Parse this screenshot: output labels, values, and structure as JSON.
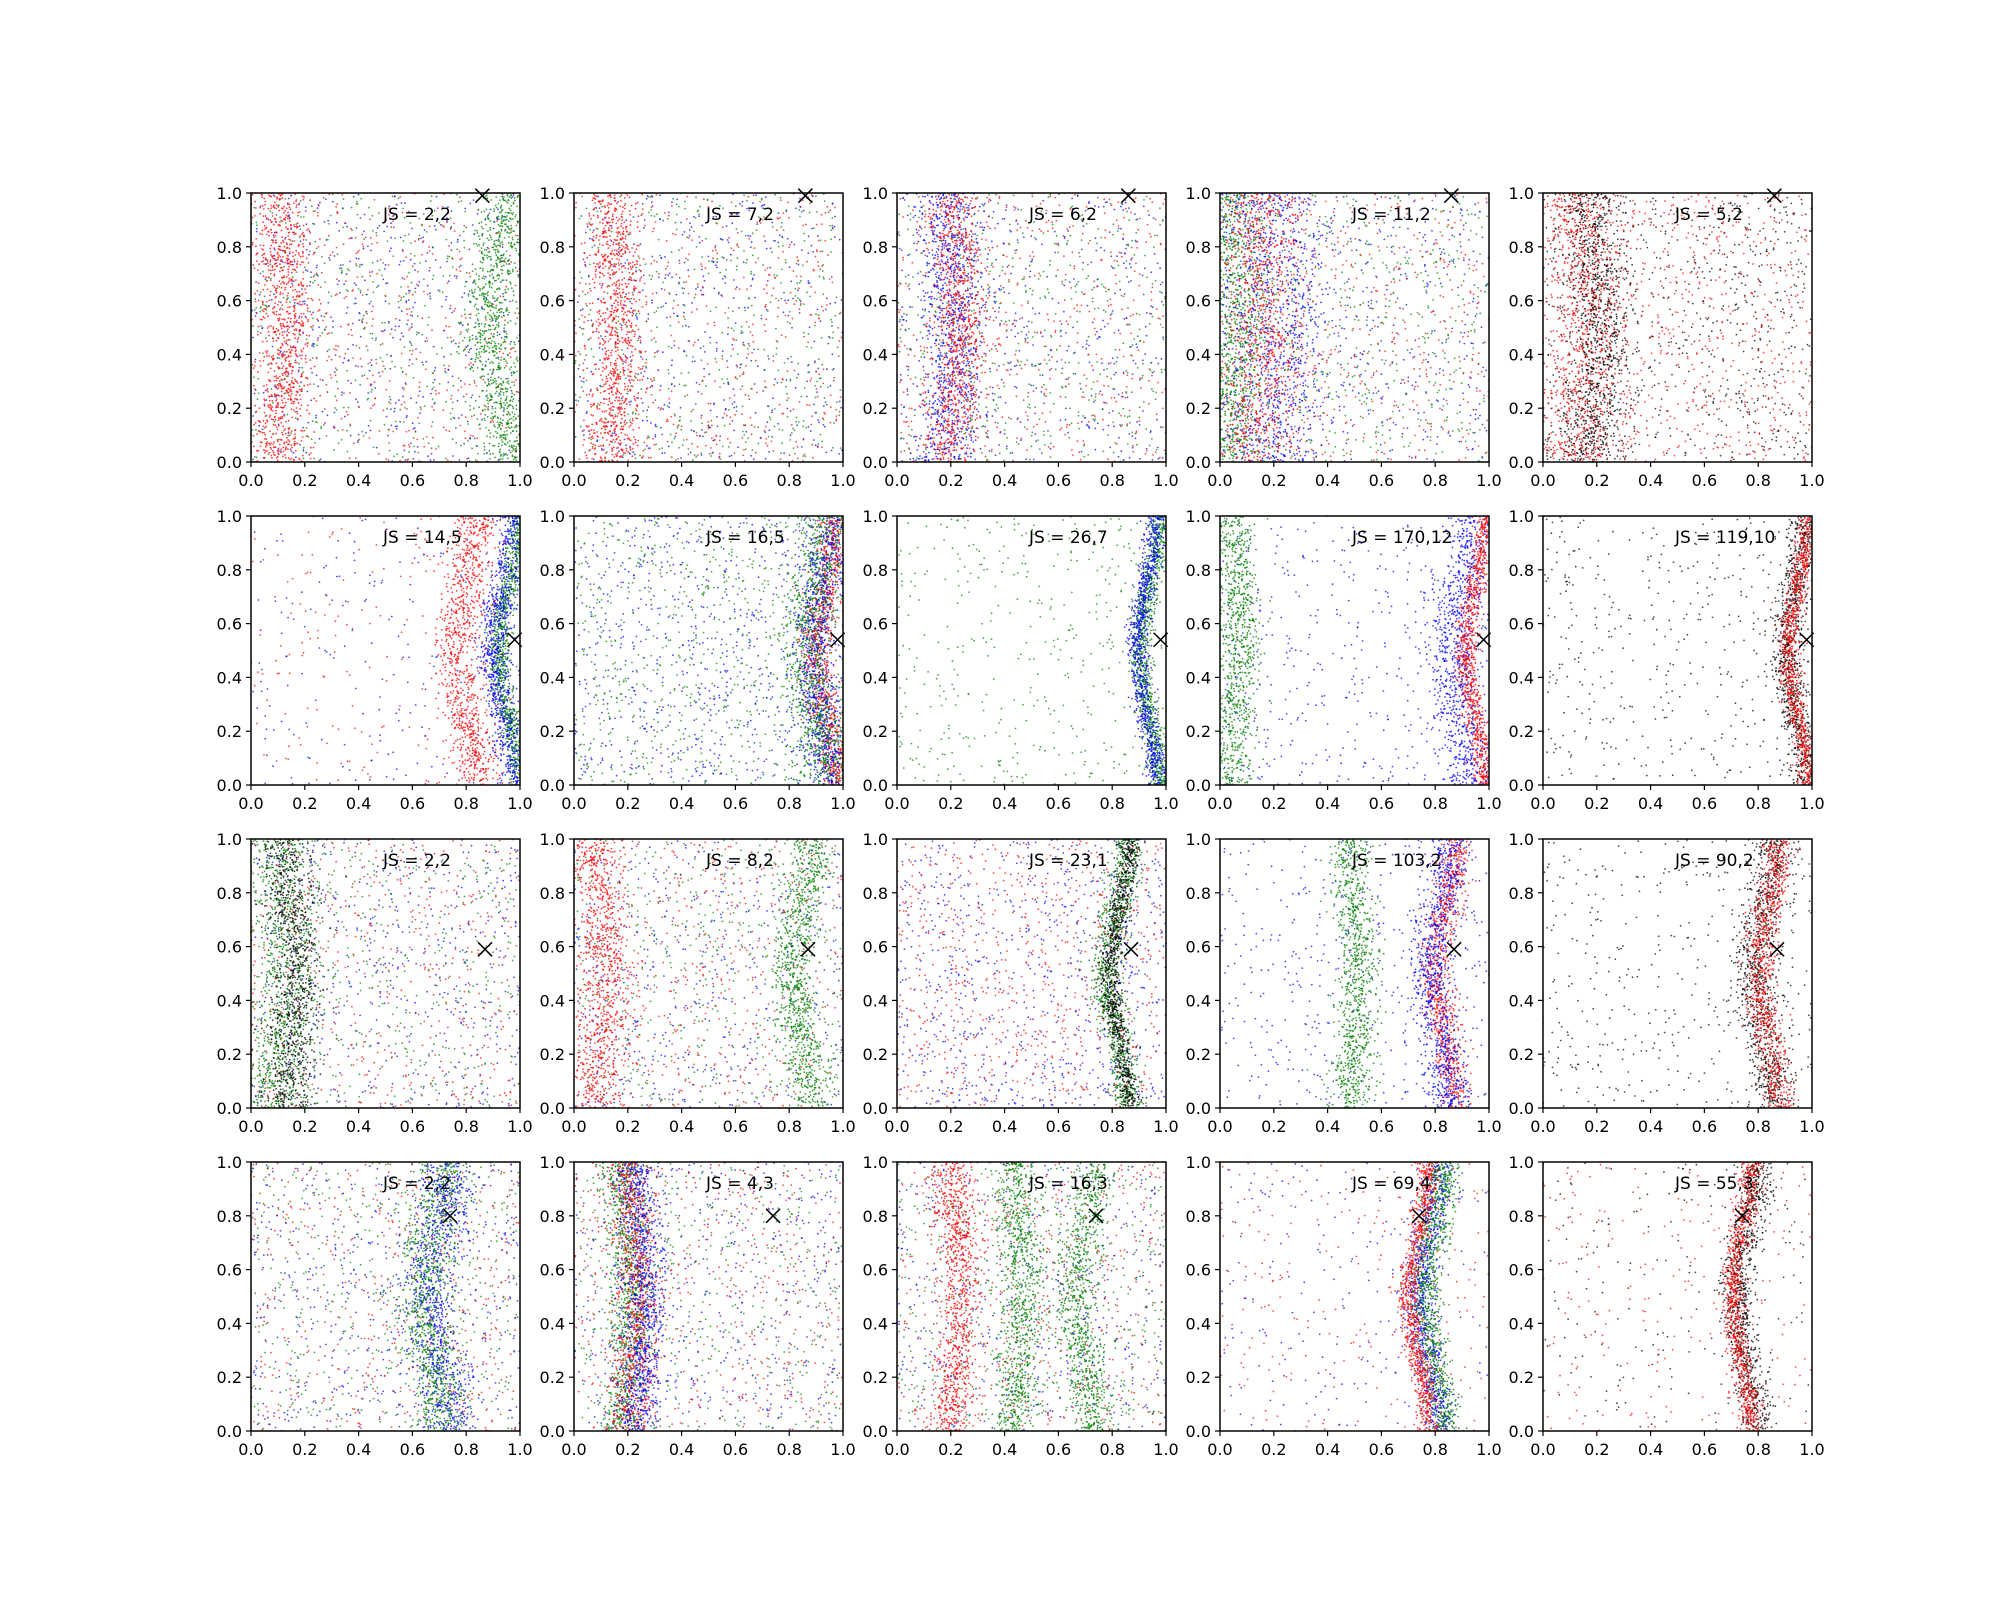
{
  "chart_data": {
    "type": "scatter",
    "layout": {
      "rows": 4,
      "cols": 5
    },
    "xlim": [
      0,
      1
    ],
    "ylim": [
      0,
      1
    ],
    "x_ticks": [
      "0.0",
      "0.2",
      "0.4",
      "0.6",
      "0.8",
      "1.0"
    ],
    "y_ticks": [
      "0.0",
      "0.2",
      "0.4",
      "0.6",
      "0.8",
      "1.0"
    ],
    "grid": false,
    "series_colors": [
      "#0000ff",
      "#008000",
      "#ff0000",
      "#000000"
    ],
    "marker_color": "#000000",
    "rows": [
      {
        "marker": [
          0.86,
          0.99
        ],
        "panels": [
          {
            "label": "JS = 2,2",
            "density": "diffuse",
            "colors": [
              "#0000ff",
              "#008000",
              "#ff0000"
            ],
            "bands": [
              [
                0.12,
                0.05,
                "#ff0000"
              ],
              [
                0.92,
                0.05,
                "#008000"
              ]
            ]
          },
          {
            "label": "JS = 7,2",
            "density": "diffuse",
            "colors": [
              "#0000ff",
              "#008000",
              "#ff0000"
            ],
            "bands": [
              [
                0.15,
                0.05,
                "#ff0000"
              ]
            ]
          },
          {
            "label": "JS = 6,2",
            "density": "diffuse",
            "colors": [
              "#0000ff",
              "#008000",
              "#ff0000"
            ],
            "bands": [
              [
                0.2,
                0.06,
                "#0000ff"
              ],
              [
                0.22,
                0.05,
                "#ff0000"
              ]
            ]
          },
          {
            "label": "JS = 11,2",
            "density": "diffuse",
            "colors": [
              "#0000ff",
              "#008000",
              "#ff0000"
            ],
            "bands": [
              [
                0.05,
                0.06,
                "#008000"
              ],
              [
                0.2,
                0.1,
                "#0000ff"
              ],
              [
                0.15,
                0.08,
                "#ff0000"
              ]
            ]
          },
          {
            "label": "JS = 5,2",
            "density": "diffuse",
            "colors": [
              "#ff0000",
              "#000000"
            ],
            "bands": [
              [
                0.15,
                0.08,
                "#ff0000"
              ],
              [
                0.2,
                0.06,
                "#000000"
              ]
            ]
          }
        ]
      },
      {
        "marker": [
          0.98,
          0.54
        ],
        "panels": [
          {
            "label": "JS = 14,5",
            "density": "sparse",
            "colors": [
              "#0000ff",
              "#ff0000"
            ],
            "bands": [
              [
                0.96,
                0.02,
                "#008000"
              ],
              [
                0.94,
                0.03,
                "#0000ff"
              ],
              [
                0.8,
                0.04,
                "#ff0000"
              ]
            ]
          },
          {
            "label": "JS = 16,5",
            "density": "diffuse",
            "colors": [
              "#008000",
              "#0000ff"
            ],
            "bands": [
              [
                0.94,
                0.03,
                "#ff0000"
              ],
              [
                0.92,
                0.04,
                "#0000ff"
              ],
              [
                0.9,
                0.05,
                "#008000"
              ]
            ]
          },
          {
            "label": "JS = 26,7",
            "density": "sparse",
            "colors": [
              "#008000"
            ],
            "bands": [
              [
                0.94,
                0.02,
                "#008000"
              ],
              [
                0.93,
                0.02,
                "#0000ff"
              ]
            ]
          },
          {
            "label": "JS = 170,12",
            "density": "sparse",
            "colors": [
              "#0000ff"
            ],
            "bands": [
              [
                0.06,
                0.04,
                "#008000"
              ],
              [
                0.9,
                0.05,
                "#0000ff"
              ],
              [
                0.95,
                0.02,
                "#ff0000"
              ]
            ]
          },
          {
            "label": "JS = 119,10",
            "density": "sparse",
            "colors": [
              "#000000"
            ],
            "bands": [
              [
                0.94,
                0.03,
                "#000000"
              ],
              [
                0.95,
                0.02,
                "#ff0000"
              ]
            ]
          }
        ]
      },
      {
        "marker": [
          0.87,
          0.59
        ],
        "panels": [
          {
            "label": "JS = 2,2",
            "density": "diffuse",
            "colors": [
              "#0000ff",
              "#008000",
              "#ff0000"
            ],
            "bands": [
              [
                0.12,
                0.06,
                "#008000"
              ],
              [
                0.15,
                0.05,
                "#000000"
              ]
            ]
          },
          {
            "label": "JS = 8,2",
            "density": "diffuse",
            "colors": [
              "#0000ff",
              "#008000",
              "#ff0000"
            ],
            "bands": [
              [
                0.85,
                0.04,
                "#008000"
              ],
              [
                0.1,
                0.05,
                "#ff0000"
              ]
            ]
          },
          {
            "label": "JS = 23,1",
            "density": "diffuse",
            "colors": [
              "#0000ff",
              "#ff0000"
            ],
            "bands": [
              [
                0.82,
                0.03,
                "#008000"
              ],
              [
                0.83,
                0.02,
                "#000000"
              ]
            ]
          },
          {
            "label": "JS = 103,2",
            "density": "sparse",
            "colors": [
              "#0000ff"
            ],
            "bands": [
              [
                0.5,
                0.04,
                "#008000"
              ],
              [
                0.84,
                0.03,
                "#ff0000"
              ],
              [
                0.82,
                0.04,
                "#0000ff"
              ]
            ]
          },
          {
            "label": "JS = 90,2",
            "density": "sparse",
            "colors": [
              "#000000"
            ],
            "bands": [
              [
                0.82,
                0.04,
                "#000000"
              ],
              [
                0.84,
                0.03,
                "#ff0000"
              ]
            ]
          }
        ]
      },
      {
        "marker": [
          0.74,
          0.8
        ],
        "panels": [
          {
            "label": "JS = 2,2",
            "density": "diffuse",
            "colors": [
              "#0000ff",
              "#008000",
              "#ff0000"
            ],
            "bands": [
              [
                0.7,
                0.05,
                "#0000ff"
              ],
              [
                0.68,
                0.05,
                "#008000"
              ]
            ]
          },
          {
            "label": "JS = 4,3",
            "density": "diffuse",
            "colors": [
              "#0000ff",
              "#008000",
              "#ff0000"
            ],
            "bands": [
              [
                0.2,
                0.04,
                "#008000"
              ],
              [
                0.22,
                0.04,
                "#ff0000"
              ],
              [
                0.25,
                0.04,
                "#0000ff"
              ]
            ]
          },
          {
            "label": "JS = 16,3",
            "density": "diffuse",
            "colors": [
              "#0000ff",
              "#008000",
              "#ff0000"
            ],
            "bands": [
              [
                0.22,
                0.04,
                "#ff0000"
              ],
              [
                0.45,
                0.04,
                "#008000"
              ],
              [
                0.7,
                0.04,
                "#008000"
              ]
            ]
          },
          {
            "label": "JS = 69,4",
            "density": "sparse",
            "colors": [
              "#0000ff",
              "#ff0000"
            ],
            "bands": [
              [
                0.78,
                0.03,
                "#0000ff"
              ],
              [
                0.8,
                0.03,
                "#008000"
              ],
              [
                0.74,
                0.02,
                "#ff0000"
              ]
            ]
          },
          {
            "label": "JS = 55,3",
            "density": "sparse",
            "colors": [
              "#ff0000",
              "#000000"
            ],
            "bands": [
              [
                0.76,
                0.03,
                "#000000"
              ],
              [
                0.74,
                0.02,
                "#ff0000"
              ]
            ]
          }
        ]
      }
    ]
  }
}
